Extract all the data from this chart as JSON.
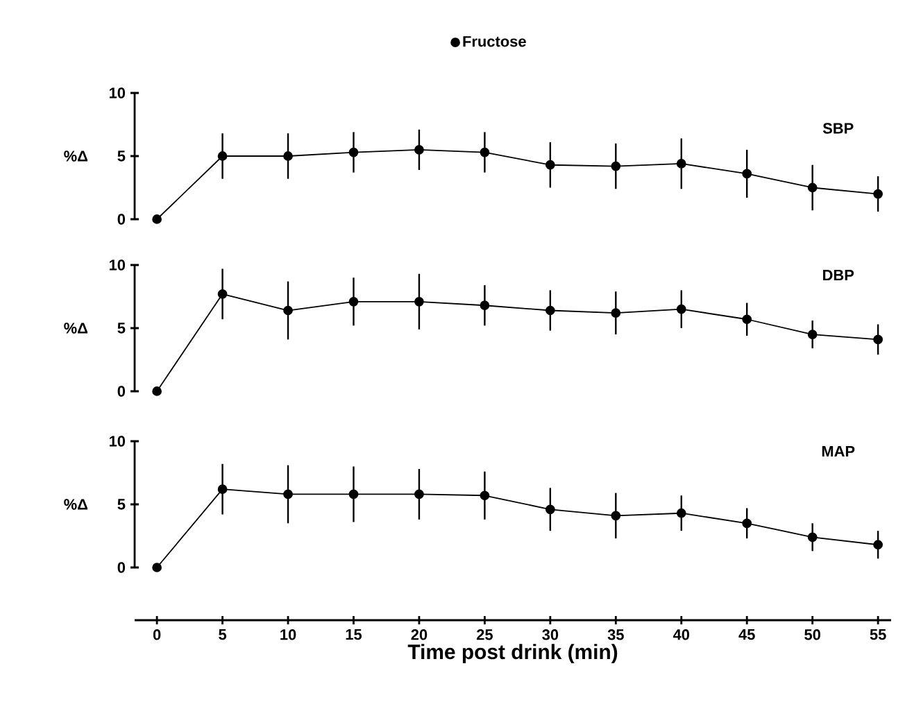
{
  "chart_data": [
    {
      "type": "line",
      "ylabel": "%Δ",
      "x": [
        0,
        5,
        10,
        15,
        20,
        25,
        30,
        35,
        40,
        45,
        50,
        55
      ],
      "ylim": [
        0,
        10
      ],
      "yticks": [
        0,
        5,
        10
      ],
      "tick_labels": "y",
      "marker": "circle",
      "legend": "top",
      "annotations": [
        "SBP"
      ],
      "series": [
        {
          "name": "Fructose",
          "color": "#000000",
          "values": [
            0,
            5.0,
            5.0,
            5.3,
            5.5,
            5.3,
            4.3,
            4.2,
            4.4,
            3.6,
            2.5,
            2.0
          ],
          "errors": [
            null,
            1.8,
            1.8,
            1.6,
            1.6,
            1.6,
            1.8,
            1.8,
            2.0,
            1.9,
            1.8,
            1.4
          ]
        }
      ]
    },
    {
      "type": "line",
      "ylabel": "%Δ",
      "x": [
        0,
        5,
        10,
        15,
        20,
        25,
        30,
        35,
        40,
        45,
        50,
        55
      ],
      "ylim": [
        0,
        10
      ],
      "yticks": [
        0,
        5,
        10
      ],
      "tick_labels": "y",
      "marker": "circle",
      "annotations": [
        "DBP"
      ],
      "series": [
        {
          "color": "#000000",
          "values": [
            0,
            7.7,
            6.4,
            7.1,
            7.1,
            6.8,
            6.4,
            6.2,
            6.5,
            5.7,
            4.5,
            4.1
          ],
          "errors": [
            null,
            2.0,
            2.3,
            1.9,
            2.2,
            1.6,
            1.6,
            1.7,
            1.5,
            1.3,
            1.1,
            1.2
          ]
        }
      ]
    },
    {
      "type": "line",
      "ylabel": "%Δ",
      "xlabel": "Time post drink (min)",
      "x": [
        0,
        5,
        10,
        15,
        20,
        25,
        30,
        35,
        40,
        45,
        50,
        55
      ],
      "xlim": [
        -1.7,
        56
      ],
      "xticks": [
        0,
        5,
        10,
        15,
        20,
        25,
        30,
        35,
        40,
        45,
        50,
        55
      ],
      "ylim": [
        0,
        10
      ],
      "yticks": [
        0,
        5,
        10
      ],
      "marker": "circle",
      "annotations": [
        "MAP"
      ],
      "series": [
        {
          "color": "#000000",
          "values": [
            0,
            6.2,
            5.8,
            5.8,
            5.8,
            5.7,
            4.6,
            4.1,
            4.3,
            3.5,
            2.4,
            1.8
          ],
          "errors": [
            null,
            2.0,
            2.3,
            2.2,
            2.0,
            1.9,
            1.7,
            1.8,
            1.4,
            1.2,
            1.1,
            1.1
          ]
        }
      ]
    }
  ]
}
